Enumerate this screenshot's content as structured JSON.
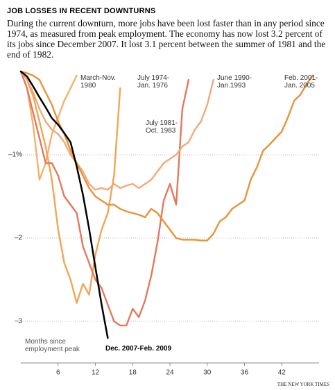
{
  "chart_data": {
    "type": "line",
    "title": "JOB LOSSES IN RECENT DOWNTURNS",
    "subtitle": "During the current downturn, more jobs have been lost faster than in any period since 1974, as measured from peak employment. The economy has now lost 3.2 percent of its jobs since December 2007. It lost 3.1 percent between the summer of 1981 and the end of 1982.",
    "x_label": "Months since\nemployment peak",
    "source": "THE NEW YORK TIMES",
    "x": [
      0,
      1,
      2,
      3,
      4,
      5,
      6,
      7,
      8,
      9,
      10,
      11,
      12,
      13,
      14,
      15,
      16,
      17,
      18,
      19,
      20,
      21,
      22,
      23,
      24,
      25,
      26,
      27,
      28,
      29,
      30,
      31,
      32,
      33,
      34,
      35,
      36,
      37,
      38,
      39,
      40,
      41,
      42,
      43,
      44,
      45,
      46,
      47
    ],
    "xlim": [
      0,
      48
    ],
    "xticks": [
      6,
      12,
      18,
      24,
      30,
      36,
      42
    ],
    "ylim": [
      -3.5,
      0
    ],
    "yticks": [
      {
        "value": -1,
        "label": "–1%"
      },
      {
        "value": -2,
        "label": "–2"
      },
      {
        "value": -3,
        "label": "–3"
      }
    ],
    "grid": true,
    "series": [
      {
        "name": "March-Nov.\n1980",
        "color": "#f3b26e",
        "values": [
          0,
          -0.2,
          -0.65,
          -1.3,
          -1.1,
          -0.75,
          -0.55,
          -0.35,
          -0.2,
          -0.05,
          null,
          null,
          null,
          null,
          null,
          null,
          null,
          null,
          null,
          null,
          null,
          null,
          null,
          null,
          null,
          null,
          null,
          null,
          null,
          null,
          null,
          null,
          null,
          null,
          null,
          null,
          null,
          null,
          null,
          null,
          null,
          null,
          null,
          null,
          null,
          null,
          null,
          null
        ]
      },
      {
        "name": "July 1974-\nJan. 1976",
        "color": "#f0a653",
        "values": [
          0,
          -0.1,
          -0.3,
          -0.6,
          -0.9,
          -1.3,
          -1.9,
          -2.3,
          -2.5,
          -2.78,
          -2.55,
          -2.68,
          -2.2,
          -1.9,
          -1.7,
          -1.25,
          -0.2,
          null,
          null,
          null,
          null,
          null,
          null,
          null,
          null,
          null,
          null,
          null,
          null,
          null,
          null,
          null,
          null,
          null,
          null,
          null,
          null,
          null,
          null,
          null,
          null,
          null,
          null,
          null,
          null,
          null,
          null,
          null
        ]
      },
      {
        "name": "July 1981-\nOct. 1983",
        "color": "#e3785a",
        "values": [
          0,
          -0.2,
          -0.5,
          -0.8,
          -1.1,
          -1.1,
          -1.25,
          -1.5,
          -1.6,
          -1.7,
          -2.1,
          -2.3,
          -2.5,
          -2.6,
          -2.8,
          -3.0,
          -3.05,
          -3.05,
          -2.85,
          -2.95,
          -2.75,
          -2.45,
          -2.05,
          -1.55,
          -1.35,
          -1.6,
          -0.45,
          -0.1,
          null,
          null,
          null,
          null,
          null,
          null,
          null,
          null,
          null,
          null,
          null,
          null,
          null,
          null,
          null,
          null,
          null,
          null,
          null,
          null
        ]
      },
      {
        "name": "June 1990-\nJan.1993",
        "color": "#f1a97a",
        "values": [
          0,
          -0.1,
          -0.25,
          -0.45,
          -0.6,
          -0.7,
          -0.75,
          -0.85,
          -1.0,
          -1.1,
          -1.2,
          -1.35,
          -1.42,
          -1.4,
          -1.42,
          -1.35,
          -1.4,
          -1.37,
          -1.35,
          -1.4,
          -1.35,
          -1.3,
          -1.2,
          -1.1,
          -1.05,
          -1.0,
          -0.9,
          -0.85,
          -0.7,
          -0.6,
          -0.4,
          -0.1,
          null,
          null,
          null,
          null,
          null,
          null,
          null,
          null,
          null,
          null,
          null,
          null,
          null,
          null,
          null,
          null
        ]
      },
      {
        "name": "Feb. 2001-\nJan. 2005",
        "color": "#e99238",
        "values": [
          0,
          -0.02,
          -0.05,
          -0.1,
          -0.25,
          -0.4,
          -0.6,
          -0.75,
          -0.95,
          -1.1,
          -1.25,
          -1.4,
          -1.5,
          -1.55,
          -1.6,
          -1.6,
          -1.65,
          -1.68,
          -1.7,
          -1.72,
          -1.75,
          -1.65,
          -1.7,
          -1.8,
          -1.9,
          -2.0,
          -2.02,
          -2.02,
          -2.02,
          -2.03,
          -2.03,
          -1.95,
          -1.8,
          -1.75,
          -1.65,
          -1.6,
          -1.55,
          -1.3,
          -1.15,
          -0.95,
          -0.88,
          -0.8,
          -0.72,
          -0.55,
          -0.35,
          -0.28,
          -0.15,
          -0.05
        ]
      },
      {
        "name": "Dec. 2007-Feb. 2009",
        "color": "#000000",
        "values": [
          0,
          -0.06,
          -0.18,
          -0.31,
          -0.43,
          -0.56,
          -0.64,
          -0.74,
          -0.85,
          -1.14,
          -1.48,
          -1.89,
          -2.35,
          -2.8,
          -3.2,
          null,
          null,
          null,
          null,
          null,
          null,
          null,
          null,
          null,
          null,
          null,
          null,
          null,
          null,
          null,
          null,
          null,
          null,
          null,
          null,
          null,
          null,
          null,
          null,
          null,
          null,
          null,
          null,
          null,
          null,
          null,
          null,
          null
        ]
      }
    ]
  }
}
